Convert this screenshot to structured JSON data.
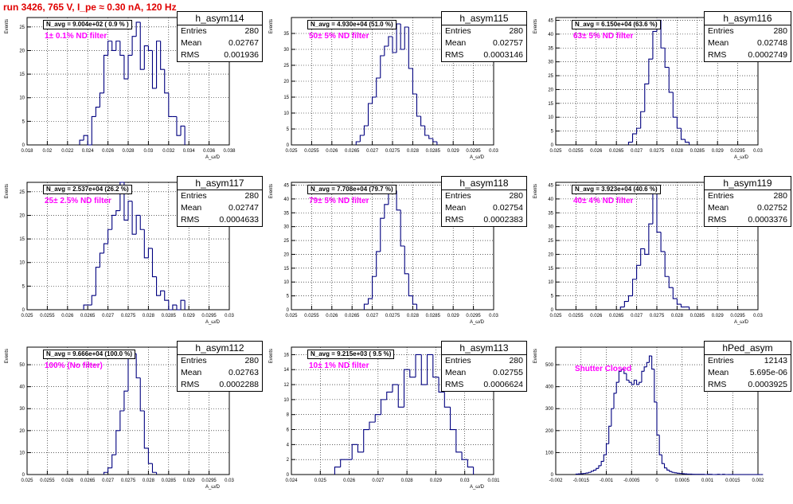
{
  "title": "run 3426,   765 V, I_pe ≈ 0.30 nA, 120 Hz",
  "colors": {
    "hist": "#00007f",
    "title": "#e00000",
    "filter": "#ff00ff"
  },
  "chart_data": [
    {
      "type": "bar",
      "hist_name": "h_asym114",
      "n_avg": "N_avg = 9.004e+02 ( 0.9 % )",
      "filter_label": "1± 0.1% ND filter",
      "stats": {
        "entries": "280",
        "mean": "0.02767",
        "rms": "0.001936"
      },
      "ylabel": "Events",
      "xlabel": "A_ω/D",
      "xlim": [
        0.018,
        0.038
      ],
      "ylim": [
        0,
        27
      ],
      "xticks": [
        "0.018",
        "0.02",
        "0.022",
        "0.024",
        "0.026",
        "0.028",
        "0.03",
        "0.032",
        "0.034",
        "0.036",
        "0.038"
      ],
      "yticks": [
        "0",
        "5",
        "10",
        "15",
        "20",
        "25"
      ],
      "bins": {
        "start": 0.0232,
        "width": 0.0004,
        "values": [
          1,
          2,
          0,
          6,
          8,
          11,
          19,
          22,
          20,
          22,
          19,
          14,
          19,
          23,
          26,
          16,
          21,
          20,
          12,
          22,
          16,
          11,
          6,
          6,
          2,
          4
        ]
      }
    },
    {
      "type": "bar",
      "hist_name": "h_asym115",
      "n_avg": "N_avg = 4.930e+04 (51.0 %)",
      "filter_label": "50± 5% ND filter",
      "stats": {
        "entries": "280",
        "mean": "0.02757",
        "rms": "0.0003146"
      },
      "ylabel": "Events",
      "xlabel": "A_ω/D",
      "xlim": [
        0.025,
        0.03
      ],
      "ylim": [
        0,
        40
      ],
      "xticks": [
        "0.025",
        "0.0255",
        "0.026",
        "0.0265",
        "0.027",
        "0.0275",
        "0.028",
        "0.0285",
        "0.029",
        "0.0295",
        "0.03"
      ],
      "yticks": [
        "0",
        "5",
        "10",
        "15",
        "20",
        "25",
        "30",
        "35"
      ],
      "bins": {
        "start": 0.0266,
        "width": 0.0001,
        "values": [
          1,
          3,
          6,
          13,
          15,
          21,
          28,
          31,
          34,
          29,
          38,
          30,
          37,
          24,
          16,
          9,
          6,
          3,
          2,
          1
        ]
      }
    },
    {
      "type": "bar",
      "hist_name": "h_asym116",
      "n_avg": "N_avg = 6.150e+04 (63.6 %)",
      "filter_label": "63± 5% ND filter",
      "stats": {
        "entries": "280",
        "mean": "0.02748",
        "rms": "0.0002749"
      },
      "ylabel": "Events",
      "xlabel": "A_ω/D",
      "xlim": [
        0.025,
        0.03
      ],
      "ylim": [
        0,
        46
      ],
      "xticks": [
        "0.025",
        "0.0255",
        "0.026",
        "0.0265",
        "0.027",
        "0.0275",
        "0.028",
        "0.0285",
        "0.029",
        "0.0295",
        "0.03"
      ],
      "yticks": [
        "0",
        "5",
        "10",
        "15",
        "20",
        "25",
        "30",
        "35",
        "40",
        "45"
      ],
      "bins": {
        "start": 0.0268,
        "width": 0.0001,
        "values": [
          1,
          4,
          6,
          12,
          22,
          31,
          41,
          45,
          35,
          28,
          19,
          10,
          6,
          2,
          1
        ]
      }
    },
    {
      "type": "bar",
      "hist_name": "h_asym117",
      "n_avg": "N_avg = 2.537e+04 (26.2 %)",
      "filter_label": "25± 2.5% ND filter",
      "stats": {
        "entries": "280",
        "mean": "0.02747",
        "rms": "0.0004633"
      },
      "ylabel": "Events",
      "xlabel": "A_ω/D",
      "xlim": [
        0.025,
        0.03
      ],
      "ylim": [
        0,
        27
      ],
      "xticks": [
        "0.025",
        "0.0255",
        "0.026",
        "0.0265",
        "0.027",
        "0.0275",
        "0.028",
        "0.0285",
        "0.029",
        "0.0295",
        "0.03"
      ],
      "yticks": [
        "0",
        "5",
        "10",
        "15",
        "20",
        "25"
      ],
      "bins": {
        "start": 0.0264,
        "width": 0.0001,
        "values": [
          1,
          1,
          3,
          9,
          12,
          14,
          17,
          20,
          21,
          27,
          19,
          23,
          16,
          20,
          17,
          11,
          13,
          7,
          3,
          4,
          2,
          0,
          1,
          0,
          2
        ]
      }
    },
    {
      "type": "bar",
      "hist_name": "h_asym118",
      "n_avg": "N_avg = 7.708e+04 (79.7 %)",
      "filter_label": "79± 5% ND filter",
      "stats": {
        "entries": "280",
        "mean": "0.02754",
        "rms": "0.0002383"
      },
      "ylabel": "Events",
      "xlabel": "A_ω/D",
      "xlim": [
        0.025,
        0.03
      ],
      "ylim": [
        0,
        46
      ],
      "xticks": [
        "0.025",
        "0.0255",
        "0.026",
        "0.0265",
        "0.027",
        "0.0275",
        "0.028",
        "0.0285",
        "0.029",
        "0.0295",
        "0.03"
      ],
      "yticks": [
        "0",
        "5",
        "10",
        "15",
        "20",
        "25",
        "30",
        "35",
        "40",
        "45"
      ],
      "bins": {
        "start": 0.0268,
        "width": 0.0001,
        "values": [
          2,
          4,
          12,
          21,
          33,
          38,
          42,
          43,
          36,
          23,
          13,
          5,
          2
        ]
      }
    },
    {
      "type": "bar",
      "hist_name": "h_asym119",
      "n_avg": "N_avg = 3.923e+04 (40.6 %)",
      "filter_label": "40± 4% ND filter",
      "stats": {
        "entries": "280",
        "mean": "0.02752",
        "rms": "0.0003376"
      },
      "ylabel": "Events",
      "xlabel": "A_ω/D",
      "xlim": [
        0.025,
        0.03
      ],
      "ylim": [
        0,
        46
      ],
      "xticks": [
        "0.025",
        "0.0255",
        "0.026",
        "0.0265",
        "0.027",
        "0.0275",
        "0.028",
        "0.0285",
        "0.029",
        "0.0295",
        "0.03"
      ],
      "yticks": [
        "0",
        "5",
        "10",
        "15",
        "20",
        "25",
        "30",
        "35",
        "40",
        "45"
      ],
      "bins": {
        "start": 0.0266,
        "width": 0.0001,
        "values": [
          1,
          3,
          5,
          11,
          16,
          22,
          20,
          31,
          44,
          28,
          21,
          12,
          8,
          4,
          2,
          1,
          1
        ]
      }
    },
    {
      "type": "bar",
      "hist_name": "h_asym112",
      "n_avg": "N_avg = 9.666e+04 (100.0 %)",
      "filter_label": "100% (No filter)",
      "stats": {
        "entries": "280",
        "mean": "0.02763",
        "rms": "0.0002288"
      },
      "ylabel": "Events",
      "xlabel": "A_ω/D",
      "xlim": [
        0.025,
        0.03
      ],
      "ylim": [
        0,
        58
      ],
      "xticks": [
        "0.025",
        "0.0255",
        "0.026",
        "0.0265",
        "0.027",
        "0.0275",
        "0.028",
        "0.0285",
        "0.029",
        "0.0295",
        "0.03"
      ],
      "yticks": [
        "0",
        "10",
        "20",
        "30",
        "40",
        "50"
      ],
      "bins": {
        "start": 0.0269,
        "width": 0.0001,
        "values": [
          1,
          3,
          9,
          20,
          29,
          38,
          53,
          55,
          44,
          29,
          12,
          5,
          1
        ]
      }
    },
    {
      "type": "bar",
      "hist_name": "h_asym113",
      "n_avg": "N_avg = 9.215e+03 ( 9.5 %)",
      "filter_label": "10± 1% ND filter",
      "stats": {
        "entries": "280",
        "mean": "0.02755",
        "rms": "0.0006624"
      },
      "ylabel": "Events",
      "xlabel": "A_ω/D",
      "xlim": [
        0.024,
        0.031
      ],
      "ylim": [
        0,
        17
      ],
      "xticks": [
        "0.024",
        "0.025",
        "0.026",
        "0.027",
        "0.028",
        "0.029",
        "0.03",
        "0.031"
      ],
      "yticks": [
        "0",
        "2",
        "4",
        "6",
        "8",
        "10",
        "12",
        "14",
        "16"
      ],
      "bins": {
        "start": 0.0255,
        "width": 0.0002,
        "values": [
          1,
          2,
          2,
          4,
          3,
          6,
          7,
          8,
          10,
          11,
          12,
          9,
          14,
          13,
          16,
          12,
          16,
          13,
          11,
          9,
          6,
          3,
          2,
          1
        ]
      }
    },
    {
      "type": "bar",
      "hist_name": "hPed_asym",
      "n_avg": "",
      "filter_label": "Shutter Closed",
      "stats": {
        "entries": "12143",
        "mean": "5.695e-06",
        "rms": "0.0003925"
      },
      "ylabel": "Events",
      "xlabel": "",
      "xlim": [
        -0.002,
        0.002
      ],
      "ylim": [
        0,
        580
      ],
      "xticks": [
        "-0.002",
        "-0.0015",
        "-0.001",
        "-0.0005",
        "0",
        "0.0005",
        "0.001",
        "0.0015",
        "0.002"
      ],
      "yticks": [
        "0",
        "100",
        "200",
        "300",
        "400",
        "500"
      ],
      "bins": {
        "start": -0.0016,
        "width": 5e-05,
        "values": [
          2,
          3,
          4,
          5,
          7,
          10,
          15,
          20,
          28,
          40,
          60,
          90,
          140,
          220,
          300,
          370,
          420,
          470,
          480,
          460,
          430,
          420,
          410,
          430,
          410,
          420,
          470,
          490,
          510,
          540,
          480,
          330,
          180,
          90,
          50,
          30,
          20,
          14,
          10,
          8,
          6,
          5,
          4,
          3,
          2,
          2,
          1,
          1,
          1,
          1,
          1,
          0,
          1,
          1,
          0,
          0,
          1,
          0,
          1,
          0,
          0,
          0,
          0,
          0,
          0,
          0,
          0,
          0,
          0,
          0,
          0,
          0,
          0,
          0
        ]
      }
    }
  ]
}
